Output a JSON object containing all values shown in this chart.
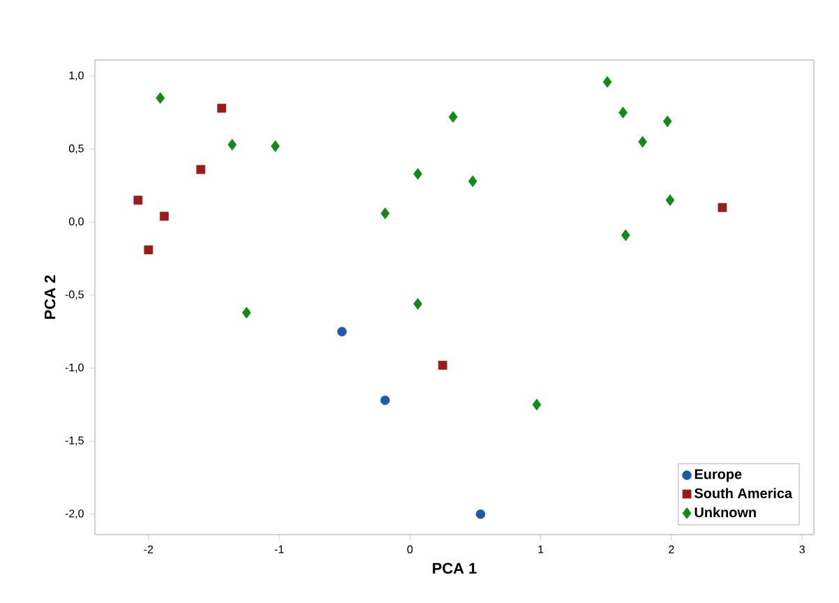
{
  "chart_data": {
    "type": "scatter",
    "xlabel": "PCA 1",
    "ylabel": "PCA 2",
    "legend": "bottom right",
    "grid": false,
    "xlim": [
      -2.41,
      3.09
    ],
    "ylim": [
      -2.14,
      1.11
    ],
    "xticks": [
      {
        "value": -2,
        "label": "-2"
      },
      {
        "value": -1,
        "label": "-1"
      },
      {
        "value": 0,
        "label": "0"
      },
      {
        "value": 1,
        "label": "1"
      },
      {
        "value": 2,
        "label": "2"
      },
      {
        "value": 3,
        "label": "3"
      }
    ],
    "yticks": [
      {
        "value": -2,
        "label": "-2,0"
      },
      {
        "value": -1.5,
        "label": "-1,5"
      },
      {
        "value": -1,
        "label": "-1,0"
      },
      {
        "value": -0.5,
        "label": "-0,5"
      },
      {
        "value": 0,
        "label": "0,0"
      },
      {
        "value": 0.5,
        "label": "0,5"
      },
      {
        "value": 1,
        "label": "1,0"
      }
    ],
    "series": [
      {
        "name": "Europe",
        "color": "#1f5aa6",
        "marker": "circle",
        "x": [
          -0.52,
          -0.19,
          0.54
        ],
        "values": [
          -0.75,
          -1.22,
          -2.0
        ]
      },
      {
        "name": "South America",
        "color": "#9b1b1b",
        "marker": "square",
        "x": [
          -2.08,
          -1.88,
          -2.0,
          -1.6,
          -1.44,
          0.25,
          2.39
        ],
        "values": [
          0.15,
          0.04,
          -0.19,
          0.36,
          0.78,
          -0.98,
          0.1
        ]
      },
      {
        "name": "Unknown",
        "color": "#138a17",
        "marker": "diamond",
        "x": [
          -1.91,
          -1.36,
          -1.03,
          -1.25,
          -0.19,
          0.06,
          0.06,
          0.33,
          0.48,
          0.97,
          1.51,
          1.63,
          1.78,
          1.97,
          1.99,
          1.65
        ],
        "values": [
          0.85,
          0.53,
          0.52,
          -0.62,
          0.06,
          0.33,
          -0.56,
          0.72,
          0.28,
          -1.25,
          0.96,
          0.75,
          0.55,
          0.69,
          0.15,
          -0.09
        ]
      }
    ]
  }
}
